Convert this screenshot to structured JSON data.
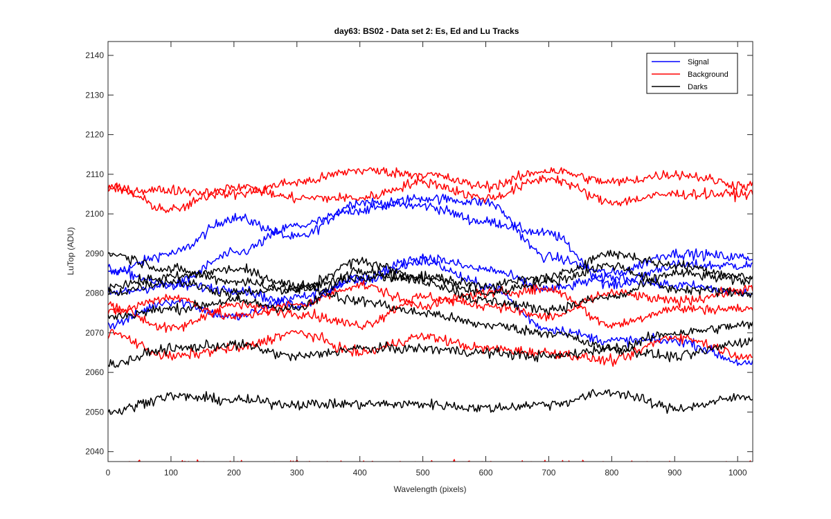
{
  "chart_data": {
    "type": "line",
    "title": "day63: BS02 - Data set 2: Es, Ed and Lu Tracks",
    "xlabel": "Wavelength (pixels)",
    "ylabel": "LuTop (ADU)",
    "xlim": [
      0,
      1024
    ],
    "ylim": [
      2037.5,
      2143.5
    ],
    "xticks": [
      0,
      100,
      200,
      300,
      400,
      500,
      600,
      700,
      800,
      900,
      1000
    ],
    "yticks": [
      2040,
      2050,
      2060,
      2070,
      2080,
      2090,
      2100,
      2110,
      2120,
      2130,
      2140
    ],
    "grid": false,
    "legend_position": "top-right",
    "legend": [
      {
        "label": "Signal",
        "color": "#0000ff"
      },
      {
        "label": "Background",
        "color": "#ff0000"
      },
      {
        "label": "Darks",
        "color": "#000000"
      }
    ],
    "series": [
      {
        "name": "Signal",
        "color": "#0000ff",
        "x": [
          0,
          100,
          200,
          300,
          400,
          500,
          600,
          700,
          800,
          900,
          1024
        ],
        "y": [
          2085,
          2090,
          2099,
          2094,
          2103,
          2102,
          2098,
          2095,
          2082,
          2087,
          2087
        ]
      },
      {
        "name": "Signal",
        "color": "#0000ff",
        "x": [
          0,
          100,
          200,
          300,
          400,
          500,
          600,
          700,
          800,
          900,
          1024
        ],
        "y": [
          2086,
          2082,
          2090,
          2097,
          2101,
          2104,
          2103,
          2089,
          2085,
          2090,
          2089
        ]
      },
      {
        "name": "Signal",
        "color": "#0000ff",
        "x": [
          0,
          100,
          200,
          300,
          400,
          500,
          600,
          700,
          800,
          900,
          1024
        ],
        "y": [
          2072,
          2078,
          2074,
          2079,
          2083,
          2088,
          2082,
          2071,
          2068,
          2068,
          2062
        ]
      },
      {
        "name": "Signal",
        "color": "#0000ff",
        "x": [
          0,
          100,
          200,
          300,
          400,
          500,
          600,
          700,
          800,
          900,
          1024
        ],
        "y": [
          2080,
          2082,
          2081,
          2077,
          2084,
          2089,
          2086,
          2081,
          2084,
          2082,
          2080
        ]
      },
      {
        "name": "Background",
        "color": "#ff0000",
        "x": [
          0,
          100,
          200,
          300,
          400,
          500,
          600,
          700,
          800,
          900,
          1024
        ],
        "y": [
          2106,
          2106,
          2105,
          2108,
          2111,
          2110,
          2107,
          2111,
          2108,
          2110,
          2107
        ]
      },
      {
        "name": "Background",
        "color": "#ff0000",
        "x": [
          0,
          100,
          200,
          300,
          400,
          500,
          600,
          700,
          800,
          900,
          1024
        ],
        "y": [
          2107,
          2101,
          2107,
          2104,
          2104,
          2108,
          2104,
          2109,
          2103,
          2105,
          2105
        ]
      },
      {
        "name": "Background",
        "color": "#ff0000",
        "x": [
          0,
          100,
          200,
          300,
          400,
          500,
          600,
          700,
          800,
          900,
          1024
        ],
        "y": [
          2070,
          2064,
          2066,
          2070,
          2065,
          2069,
          2066,
          2065,
          2063,
          2069,
          2064
        ]
      },
      {
        "name": "Background",
        "color": "#ff0000",
        "x": [
          0,
          100,
          200,
          300,
          400,
          500,
          600,
          700,
          800,
          900,
          1024
        ],
        "y": [
          2075,
          2079,
          2074,
          2077,
          2082,
          2077,
          2080,
          2081,
          2072,
          2076,
          2076
        ]
      },
      {
        "name": "Background",
        "color": "#ff0000",
        "x": [
          0,
          100,
          200,
          300,
          400,
          500,
          600,
          700,
          800,
          900,
          1024
        ],
        "y": [
          2077,
          2071,
          2077,
          2075,
          2072,
          2079,
          2077,
          2074,
          2080,
          2078,
          2081
        ]
      },
      {
        "name": "Background",
        "color": "#ff0000",
        "x": [
          0,
          100,
          200,
          300,
          400,
          500,
          600,
          700,
          800,
          900,
          1024
        ],
        "y": [
          2038,
          2038,
          2038,
          2038,
          2038,
          2038,
          2038,
          2038,
          2038,
          2038,
          2038
        ]
      },
      {
        "name": "Darks",
        "color": "#000000",
        "x": [
          0,
          100,
          200,
          300,
          400,
          500,
          600,
          700,
          800,
          900,
          1024
        ],
        "y": [
          2050,
          2054,
          2053,
          2052,
          2052,
          2052,
          2051,
          2052,
          2055,
          2051,
          2054
        ]
      },
      {
        "name": "Darks",
        "color": "#000000",
        "x": [
          0,
          100,
          200,
          300,
          400,
          500,
          600,
          700,
          800,
          900,
          1024
        ],
        "y": [
          2062,
          2066,
          2067,
          2064,
          2066,
          2066,
          2065,
          2064,
          2066,
          2064,
          2068
        ]
      },
      {
        "name": "Darks",
        "color": "#000000",
        "x": [
          0,
          100,
          200,
          300,
          400,
          500,
          600,
          700,
          800,
          900,
          1024
        ],
        "y": [
          2090,
          2086,
          2083,
          2081,
          2088,
          2084,
          2082,
          2084,
          2090,
          2087,
          2084
        ]
      },
      {
        "name": "Darks",
        "color": "#000000",
        "x": [
          0,
          100,
          200,
          300,
          400,
          500,
          600,
          700,
          800,
          900,
          1024
        ],
        "y": [
          2074,
          2076,
          2078,
          2076,
          2086,
          2083,
          2078,
          2076,
          2079,
          2085,
          2083
        ]
      },
      {
        "name": "Darks",
        "color": "#000000",
        "x": [
          0,
          100,
          200,
          300,
          400,
          500,
          600,
          700,
          800,
          900,
          1024
        ],
        "y": [
          2082,
          2084,
          2086,
          2082,
          2078,
          2075,
          2072,
          2070,
          2066,
          2070,
          2072
        ]
      },
      {
        "name": "Darks",
        "color": "#000000",
        "x": [
          0,
          100,
          200,
          300,
          400,
          500,
          600,
          700,
          800,
          900,
          1024
        ],
        "y": [
          2080,
          2083,
          2080,
          2081,
          2084,
          2084,
          2080,
          2083,
          2087,
          2081,
          2080
        ]
      }
    ]
  }
}
